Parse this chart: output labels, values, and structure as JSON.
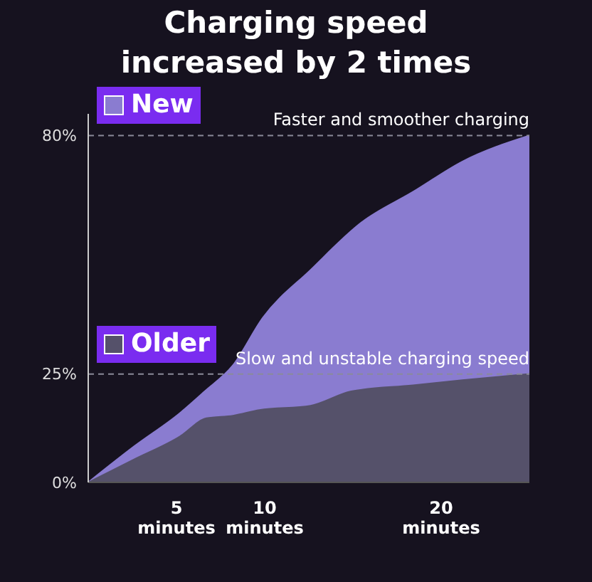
{
  "chart_data": {
    "type": "area",
    "title": "Charging speed increased by 2 times",
    "xlim": [
      0,
      25
    ],
    "xticks": [
      {
        "value": 5,
        "label": "5 minutes"
      },
      {
        "value": 10,
        "label": "10 minutes"
      },
      {
        "value": 20,
        "label": "20 minutes"
      }
    ],
    "ylim": [
      0,
      85
    ],
    "yticks": [
      {
        "value": 0,
        "label": "0%"
      },
      {
        "value": 25,
        "label": "25%"
      },
      {
        "value": 80,
        "label": "80%"
      }
    ],
    "grid": false,
    "legend": "top left",
    "marker": "none",
    "ref_lines": [
      {
        "axis": "y",
        "value": 80,
        "label": "Faster and smoother charging",
        "color": "#8a8a99",
        "line_style": "dashed"
      },
      {
        "axis": "y",
        "value": 25,
        "label": "Slow and unstable charging speed",
        "color": "#8a8a99",
        "line_style": "dashed"
      }
    ],
    "series": [
      {
        "name": "New",
        "color": "#8a7cd0",
        "x": [
          0,
          2.6,
          5.2,
          6.6,
          8.2,
          9.9,
          12.6,
          15.5,
          18.4,
          21.2,
          25
        ],
        "values": [
          0,
          8.3,
          16,
          21,
          27,
          38,
          49,
          60,
          67,
          74,
          80
        ]
      },
      {
        "name": "Older",
        "color": "#55516a",
        "x": [
          0,
          2.6,
          5.2,
          6.7,
          8.2,
          9.7,
          12.6,
          14.9,
          18.4,
          21.2,
          25
        ],
        "values": [
          0,
          5.3,
          10.6,
          14.8,
          15.4,
          16.7,
          17.7,
          21,
          22.4,
          23.6,
          25
        ]
      }
    ]
  }
}
